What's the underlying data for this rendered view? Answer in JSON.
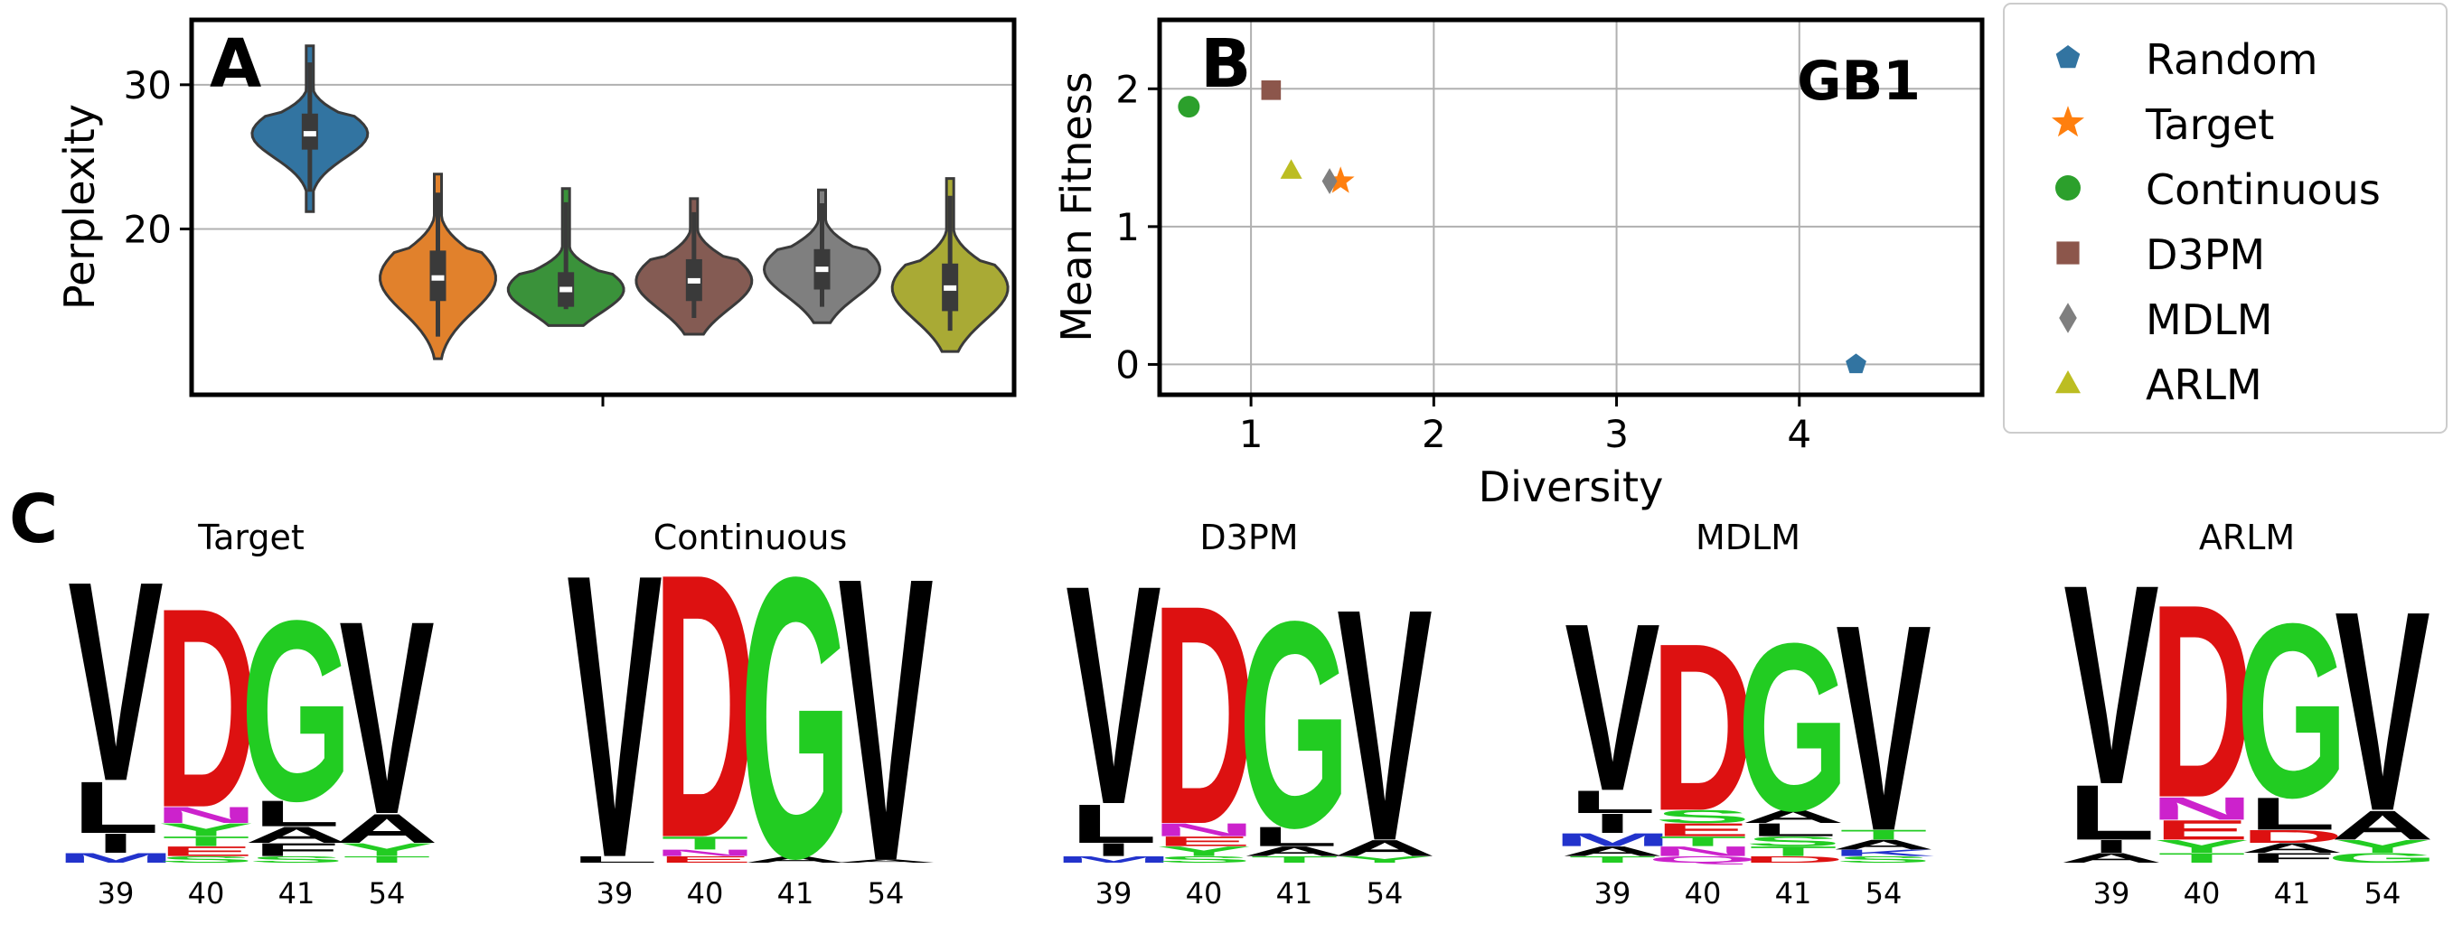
{
  "chart_data": [
    {
      "panel": "A",
      "type": "violin",
      "ylabel": "Perplexity",
      "xlabel": "",
      "ylim": [
        8.5,
        34.5
      ],
      "yticks": [
        20,
        30
      ],
      "grid": true,
      "series": [
        {
          "name": "Random",
          "color": "#3274a1",
          "min": 21.2,
          "q1": 25.5,
          "median": 26.6,
          "q3": 28.0,
          "max": 32.7
        },
        {
          "name": "Target",
          "color": "#e1812c",
          "min": 11.0,
          "q1": 15.0,
          "median": 16.6,
          "q3": 18.5,
          "max": 23.8
        },
        {
          "name": "Continuous",
          "color": "#3a923a",
          "min": 13.3,
          "q1": 14.6,
          "median": 15.8,
          "q3": 17.0,
          "max": 22.8
        },
        {
          "name": "D3PM",
          "color": "#845b53",
          "min": 12.7,
          "q1": 15.0,
          "median": 16.4,
          "q3": 17.9,
          "max": 22.1
        },
        {
          "name": "MDLM",
          "color": "#7f7f7f",
          "min": 13.5,
          "q1": 15.8,
          "median": 17.2,
          "q3": 18.6,
          "max": 22.7
        },
        {
          "name": "ARLM",
          "color": "#a9aa35",
          "min": 11.5,
          "q1": 14.3,
          "median": 15.9,
          "q3": 17.6,
          "max": 23.5
        }
      ]
    },
    {
      "panel": "B",
      "type": "scatter",
      "title": "GB1",
      "xlabel": "Diversity",
      "ylabel": "Mean Fitness",
      "xlim": [
        0.5,
        5.0
      ],
      "ylim": [
        -0.22,
        2.5
      ],
      "xticks": [
        1,
        2,
        3,
        4
      ],
      "yticks": [
        0,
        1,
        2
      ],
      "grid": true,
      "legend_position": "outside-right",
      "points": [
        {
          "name": "Random",
          "x": 4.31,
          "y": 0.0,
          "color": "#3274a1",
          "marker": "pentagon"
        },
        {
          "name": "Target",
          "x": 1.49,
          "y": 1.33,
          "color": "#ff7f0e",
          "marker": "star"
        },
        {
          "name": "Continuous",
          "x": 0.66,
          "y": 1.87,
          "color": "#2ca02c",
          "marker": "circle"
        },
        {
          "name": "D3PM",
          "x": 1.11,
          "y": 1.99,
          "color": "#8c564b",
          "marker": "square"
        },
        {
          "name": "MDLM",
          "x": 1.43,
          "y": 1.33,
          "color": "#7f7f7f",
          "marker": "diamond"
        },
        {
          "name": "ARLM",
          "x": 1.22,
          "y": 1.41,
          "color": "#bcbd22",
          "marker": "triangle"
        }
      ]
    },
    {
      "panel": "C",
      "type": "sequence-logo",
      "positions": [
        "39",
        "40",
        "41",
        "54"
      ],
      "logos": [
        {
          "title": "Target",
          "columns": [
            [
              {
                "l": "V",
                "h": 0.62,
                "c": "#000000"
              },
              {
                "l": "L",
                "h": 0.16,
                "c": "#000000"
              },
              {
                "l": "I",
                "h": 0.06,
                "c": "#000000"
              },
              {
                "l": "M",
                "h": 0.03,
                "c": "#2233cc"
              }
            ],
            [
              {
                "l": "D",
                "h": 0.62,
                "c": "#dd1111"
              },
              {
                "l": "Y",
                "h": 0.04,
                "c": "#22cc22"
              },
              {
                "l": "N",
                "h": 0.05,
                "c": "#cc22cc"
              },
              {
                "l": "E",
                "h": 0.03,
                "c": "#dd1111"
              },
              {
                "l": "T",
                "h": 0.03,
                "c": "#22cc22"
              },
              {
                "l": "S",
                "h": 0.02,
                "c": "#22cc22"
              }
            ],
            [
              {
                "l": "G",
                "h": 0.56,
                "c": "#22cc22"
              },
              {
                "l": "L",
                "h": 0.08,
                "c": "#000000"
              },
              {
                "l": "A",
                "h": 0.05,
                "c": "#000000"
              },
              {
                "l": "F",
                "h": 0.04,
                "c": "#000000"
              },
              {
                "l": "S",
                "h": 0.02,
                "c": "#22cc22"
              }
            ],
            [
              {
                "l": "V",
                "h": 0.6,
                "c": "#000000"
              },
              {
                "l": "A",
                "h": 0.09,
                "c": "#000000"
              },
              {
                "l": "Y",
                "h": 0.04,
                "c": "#22cc22"
              },
              {
                "l": "T",
                "h": 0.02,
                "c": "#22cc22"
              }
            ]
          ]
        },
        {
          "title": "Continuous",
          "columns": [
            [
              {
                "l": "V",
                "h": 0.88,
                "c": "#000000"
              },
              {
                "l": "L",
                "h": 0.02,
                "c": "#000000"
              }
            ],
            [
              {
                "l": "D",
                "h": 0.82,
                "c": "#dd1111"
              },
              {
                "l": "T",
                "h": 0.04,
                "c": "#22cc22"
              },
              {
                "l": "E",
                "h": 0.02,
                "c": "#dd1111"
              },
              {
                "l": "N",
                "h": 0.02,
                "c": "#cc22cc"
              }
            ],
            [
              {
                "l": "G",
                "h": 0.87,
                "c": "#22cc22"
              },
              {
                "l": "A",
                "h": 0.02,
                "c": "#000000"
              }
            ],
            [
              {
                "l": "V",
                "h": 0.88,
                "c": "#000000"
              },
              {
                "l": "A",
                "h": 0.01,
                "c": "#000000"
              }
            ]
          ]
        },
        {
          "title": "D3PM",
          "columns": [
            [
              {
                "l": "V",
                "h": 0.68,
                "c": "#000000"
              },
              {
                "l": "L",
                "h": 0.12,
                "c": "#000000"
              },
              {
                "l": "I",
                "h": 0.04,
                "c": "#000000"
              },
              {
                "l": "M",
                "h": 0.02,
                "c": "#2233cc"
              }
            ],
            [
              {
                "l": "D",
                "h": 0.68,
                "c": "#dd1111"
              },
              {
                "l": "Y",
                "h": 0.03,
                "c": "#22cc22"
              },
              {
                "l": "N",
                "h": 0.04,
                "c": "#cc22cc"
              },
              {
                "l": "E",
                "h": 0.03,
                "c": "#dd1111"
              },
              {
                "l": "S",
                "h": 0.02,
                "c": "#22cc22"
              }
            ],
            [
              {
                "l": "G",
                "h": 0.64,
                "c": "#22cc22"
              },
              {
                "l": "L",
                "h": 0.06,
                "c": "#000000"
              },
              {
                "l": "A",
                "h": 0.03,
                "c": "#000000"
              },
              {
                "l": "T",
                "h": 0.02,
                "c": "#22cc22"
              }
            ],
            [
              {
                "l": "V",
                "h": 0.72,
                "c": "#000000"
              },
              {
                "l": "A",
                "h": 0.05,
                "c": "#000000"
              },
              {
                "l": "Y",
                "h": 0.02,
                "c": "#22cc22"
              }
            ]
          ]
        },
        {
          "title": "MDLM",
          "columns": [
            [
              {
                "l": "V",
                "h": 0.52,
                "c": "#000000"
              },
              {
                "l": "L",
                "h": 0.07,
                "c": "#000000"
              },
              {
                "l": "I",
                "h": 0.06,
                "c": "#000000"
              },
              {
                "l": "M",
                "h": 0.04,
                "c": "#2233cc"
              },
              {
                "l": "A",
                "h": 0.03,
                "c": "#000000"
              },
              {
                "l": "T",
                "h": 0.02,
                "c": "#22cc22"
              }
            ],
            [
              {
                "l": "D",
                "h": 0.52,
                "c": "#dd1111"
              },
              {
                "l": "E",
                "h": 0.04,
                "c": "#dd1111"
              },
              {
                "l": "S",
                "h": 0.04,
                "c": "#22cc22"
              },
              {
                "l": "N",
                "h": 0.03,
                "c": "#cc22cc"
              },
              {
                "l": "T",
                "h": 0.03,
                "c": "#22cc22"
              },
              {
                "l": "Q",
                "h": 0.02,
                "c": "#cc22cc"
              }
            ],
            [
              {
                "l": "G",
                "h": 0.52,
                "c": "#22cc22"
              },
              {
                "l": "L",
                "h": 0.04,
                "c": "#000000"
              },
              {
                "l": "A",
                "h": 0.04,
                "c": "#000000"
              },
              {
                "l": "T",
                "h": 0.03,
                "c": "#22cc22"
              },
              {
                "l": "S",
                "h": 0.03,
                "c": "#22cc22"
              },
              {
                "l": "D",
                "h": 0.02,
                "c": "#dd1111"
              }
            ],
            [
              {
                "l": "V",
                "h": 0.64,
                "c": "#000000"
              },
              {
                "l": "A",
                "h": 0.03,
                "c": "#000000"
              },
              {
                "l": "T",
                "h": 0.03,
                "c": "#22cc22"
              },
              {
                "l": "S",
                "h": 0.02,
                "c": "#22cc22"
              },
              {
                "l": "K",
                "h": 0.02,
                "c": "#2233cc"
              }
            ]
          ]
        },
        {
          "title": "ARLM",
          "columns": [
            [
              {
                "l": "V",
                "h": 0.62,
                "c": "#000000"
              },
              {
                "l": "L",
                "h": 0.17,
                "c": "#000000"
              },
              {
                "l": "I",
                "h": 0.04,
                "c": "#000000"
              },
              {
                "l": "A",
                "h": 0.03,
                "c": "#000000"
              }
            ],
            [
              {
                "l": "D",
                "h": 0.6,
                "c": "#dd1111"
              },
              {
                "l": "N",
                "h": 0.07,
                "c": "#cc22cc"
              },
              {
                "l": "E",
                "h": 0.06,
                "c": "#dd1111"
              },
              {
                "l": "Y",
                "h": 0.04,
                "c": "#22cc22"
              },
              {
                "l": "T",
                "h": 0.03,
                "c": "#22cc22"
              }
            ],
            [
              {
                "l": "G",
                "h": 0.54,
                "c": "#22cc22"
              },
              {
                "l": "L",
                "h": 0.1,
                "c": "#000000"
              },
              {
                "l": "D",
                "h": 0.04,
                "c": "#dd1111"
              },
              {
                "l": "F",
                "h": 0.03,
                "c": "#000000"
              },
              {
                "l": "A",
                "h": 0.03,
                "c": "#000000"
              }
            ],
            [
              {
                "l": "V",
                "h": 0.62,
                "c": "#000000"
              },
              {
                "l": "A",
                "h": 0.09,
                "c": "#000000"
              },
              {
                "l": "Y",
                "h": 0.04,
                "c": "#22cc22"
              },
              {
                "l": "G",
                "h": 0.03,
                "c": "#22cc22"
              }
            ]
          ]
        }
      ]
    }
  ]
}
